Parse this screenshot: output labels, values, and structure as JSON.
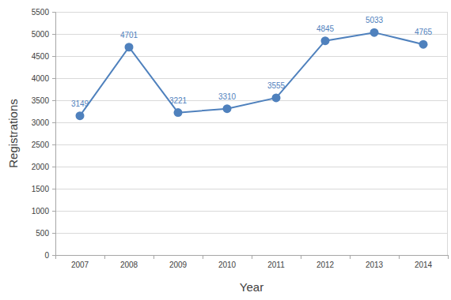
{
  "chart_data": {
    "type": "line",
    "x_label": "Year",
    "y_label": "Registrations",
    "categories": [
      "2007",
      "2008",
      "2009",
      "2010",
      "2011",
      "2012",
      "2013",
      "2014"
    ],
    "values": [
      3149,
      4701,
      3221,
      3310,
      3555,
      4845,
      5033,
      4765
    ],
    "color": "#4f81bd",
    "marker": "circle",
    "line_style": "solid",
    "ylim": [
      0,
      5500
    ],
    "yticks": [
      0,
      500,
      1000,
      1500,
      2000,
      2500,
      3000,
      3500,
      4000,
      4500,
      5000,
      5500
    ],
    "grid": true,
    "data_labels": true
  }
}
